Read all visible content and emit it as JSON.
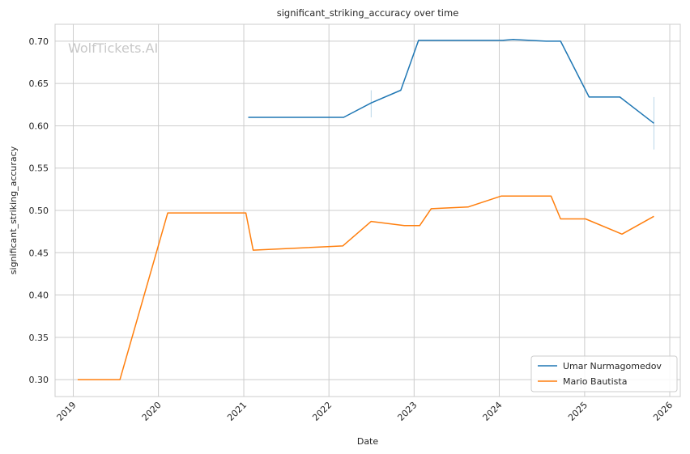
{
  "chart_data": {
    "type": "line",
    "title": "significant_striking_accuracy over time",
    "xlabel": "Date",
    "ylabel": "significant_striking_accuracy",
    "watermark": "WolfTickets.AI",
    "xlim": [
      "2018-10-15",
      "2026-02-15"
    ],
    "ylim": [
      0.28,
      0.72
    ],
    "x_ticks": [
      "2019",
      "2020",
      "2021",
      "2022",
      "2023",
      "2024",
      "2025",
      "2026"
    ],
    "y_ticks": [
      "0.30",
      "0.35",
      "0.40",
      "0.45",
      "0.50",
      "0.55",
      "0.60",
      "0.65",
      "0.70"
    ],
    "grid": true,
    "legend_position": "bottom-right",
    "series": [
      {
        "name": "Umar Nurmagomedov",
        "color": "#1f77b4",
        "points": [
          [
            "2021-01-20",
            0.61
          ],
          [
            "2022-03-05",
            0.61
          ],
          [
            "2022-07-01",
            0.627
          ],
          [
            "2022-11-05",
            0.642
          ],
          [
            "2023-01-20",
            0.701
          ],
          [
            "2024-01-15",
            0.701
          ],
          [
            "2024-03-01",
            0.702
          ],
          [
            "2024-07-20",
            0.7
          ],
          [
            "2024-09-20",
            0.7
          ],
          [
            "2025-01-20",
            0.634
          ],
          [
            "2025-06-01",
            0.634
          ],
          [
            "2025-10-25",
            0.603
          ]
        ],
        "error_bars": [
          {
            "x": "2022-07-01",
            "low": 0.61,
            "high": 0.642
          },
          {
            "x": "2025-10-25",
            "low": 0.572,
            "high": 0.634
          }
        ]
      },
      {
        "name": "Mario Bautista",
        "color": "#ff7f0e",
        "points": [
          [
            "2019-01-20",
            0.3
          ],
          [
            "2019-07-20",
            0.3
          ],
          [
            "2020-02-10",
            0.497
          ],
          [
            "2021-01-10",
            0.497
          ],
          [
            "2021-02-10",
            0.453
          ],
          [
            "2022-03-01",
            0.458
          ],
          [
            "2022-07-01",
            0.487
          ],
          [
            "2022-11-20",
            0.482
          ],
          [
            "2023-01-25",
            0.482
          ],
          [
            "2023-03-15",
            0.502
          ],
          [
            "2023-08-20",
            0.504
          ],
          [
            "2024-01-10",
            0.517
          ],
          [
            "2024-08-10",
            0.517
          ],
          [
            "2024-09-20",
            0.49
          ],
          [
            "2025-01-05",
            0.49
          ],
          [
            "2025-06-10",
            0.472
          ],
          [
            "2025-10-25",
            0.493
          ]
        ]
      }
    ]
  }
}
